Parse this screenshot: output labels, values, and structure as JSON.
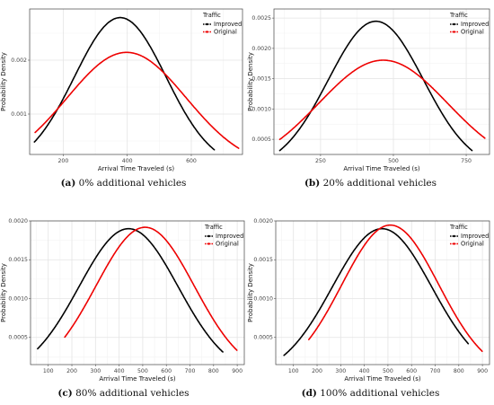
{
  "chart_data": [
    {
      "type": "line",
      "xlabel": "Arrival Time Traveled (s)",
      "ylabel": "Probability Density",
      "xlim": [
        95,
        760
      ],
      "ylim": [
        0.00025,
        0.00295
      ],
      "xticks": [
        200,
        400,
        600
      ],
      "yticks": [
        0.001,
        0.002
      ],
      "ytick_labels": [
        "0.001",
        "0.002"
      ],
      "grid": true,
      "legend_title": "Traffic",
      "legend_position": "top-right",
      "series": [
        {
          "name": "Improved",
          "color": "#000000",
          "mean": 378,
          "sd": 143,
          "x_range": [
            110,
            672
          ]
        },
        {
          "name": "Original",
          "color": "#ee0000",
          "mean": 398,
          "sd": 186,
          "x_range": [
            112,
            748
          ]
        }
      ]
    },
    {
      "type": "line",
      "xlabel": "Arrival Time Traveled (s)",
      "ylabel": "Probability Density",
      "xlim": [
        90,
        830
      ],
      "ylim": [
        0.00025,
        0.00265
      ],
      "xticks": [
        250,
        500,
        750
      ],
      "yticks": [
        0.0005,
        0.001,
        0.0015,
        0.002,
        0.0025
      ],
      "ytick_labels": [
        "0.0005",
        "0.0010",
        "0.0015",
        "0.0020",
        "0.0025"
      ],
      "grid": true,
      "legend_title": "Traffic",
      "legend_position": "top-right",
      "series": [
        {
          "name": "Improved",
          "color": "#000000",
          "mean": 440,
          "sd": 163,
          "x_range": [
            110,
            770
          ]
        },
        {
          "name": "Original",
          "color": "#ee0000",
          "mean": 465,
          "sd": 221,
          "x_range": [
            110,
            815
          ]
        }
      ]
    },
    {
      "type": "line",
      "xlabel": "Arrival Time Traveled (s)",
      "ylabel": "Probability Density",
      "xlim": [
        25,
        930
      ],
      "ylim": [
        0.00015,
        0.002
      ],
      "xticks": [
        100,
        200,
        300,
        400,
        500,
        600,
        700,
        800,
        900
      ],
      "yticks": [
        0.0005,
        0.001,
        0.0015,
        0.002
      ],
      "ytick_labels": [
        "0.0005",
        "0.0010",
        "0.0015",
        "0.0020"
      ],
      "grid": true,
      "legend_title": "Traffic",
      "legend_position": "top-right",
      "series": [
        {
          "name": "Improved",
          "color": "#000000",
          "mean": 440,
          "sd": 210,
          "x_range": [
            55,
            840
          ]
        },
        {
          "name": "Original",
          "color": "#ee0000",
          "mean": 510,
          "sd": 208,
          "x_range": [
            170,
            900
          ]
        }
      ]
    },
    {
      "type": "line",
      "xlabel": "Arrival Time Traveled (s)",
      "ylabel": "Probability Density",
      "xlim": [
        25,
        930
      ],
      "ylim": [
        0.00015,
        0.002
      ],
      "xticks": [
        100,
        200,
        300,
        400,
        500,
        600,
        700,
        800,
        900
      ],
      "yticks": [
        0.0005,
        0.001,
        0.0015,
        0.002
      ],
      "ytick_labels": [
        "0.0005",
        "0.0010",
        "0.0015",
        "0.0020"
      ],
      "grid": true,
      "legend_title": "Traffic",
      "legend_position": "top-right",
      "series": [
        {
          "name": "Improved",
          "color": "#000000",
          "mean": 475,
          "sd": 210,
          "x_range": [
            60,
            840
          ]
        },
        {
          "name": "Original",
          "color": "#ee0000",
          "mean": 510,
          "sd": 205,
          "x_range": [
            165,
            900
          ]
        }
      ]
    }
  ],
  "captions": [
    {
      "label": "(a)",
      "text": "0% additional vehicles"
    },
    {
      "label": "(b)",
      "text": "20% additional vehicles"
    },
    {
      "label": "(c)",
      "text": "80% additional vehicles"
    },
    {
      "label": "(d)",
      "text": "100% additional vehicles"
    }
  ]
}
